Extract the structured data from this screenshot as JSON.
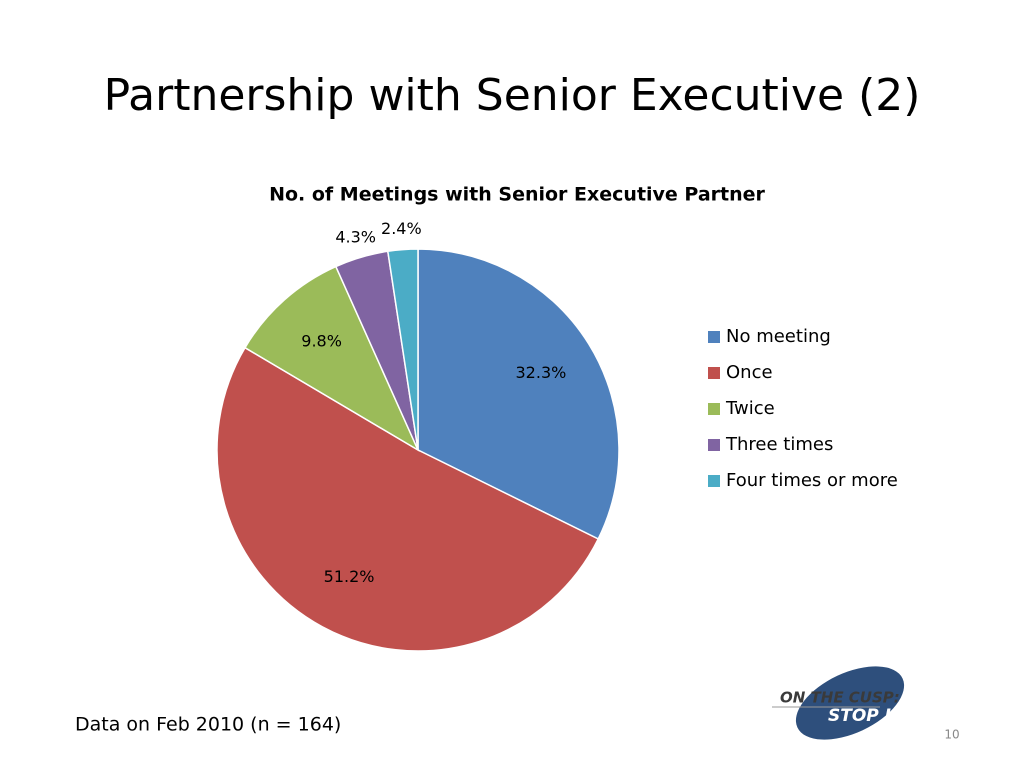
{
  "slide": {
    "title": "Partnership with Senior Executive (2)",
    "note": "Data on Feb 2010 (n = 164)",
    "page_number": "10",
    "logo": {
      "line1": "ON THE CUSP:",
      "line2": "STOP HAI"
    }
  },
  "chart_data": {
    "type": "pie",
    "title": "No. of Meetings with Senior Executive Partner",
    "categories": [
      "No meeting",
      "Once",
      "Twice",
      "Three times",
      "Four times or more"
    ],
    "values": [
      32.3,
      51.2,
      9.8,
      4.3,
      2.4
    ],
    "value_labels": [
      "32.3%",
      "51.2%",
      "9.8%",
      "4.3%",
      "2.4%"
    ],
    "colors": [
      "#4f81bd",
      "#c0504d",
      "#9bbb59",
      "#8064a2",
      "#4bacc6"
    ],
    "legend": "right"
  }
}
